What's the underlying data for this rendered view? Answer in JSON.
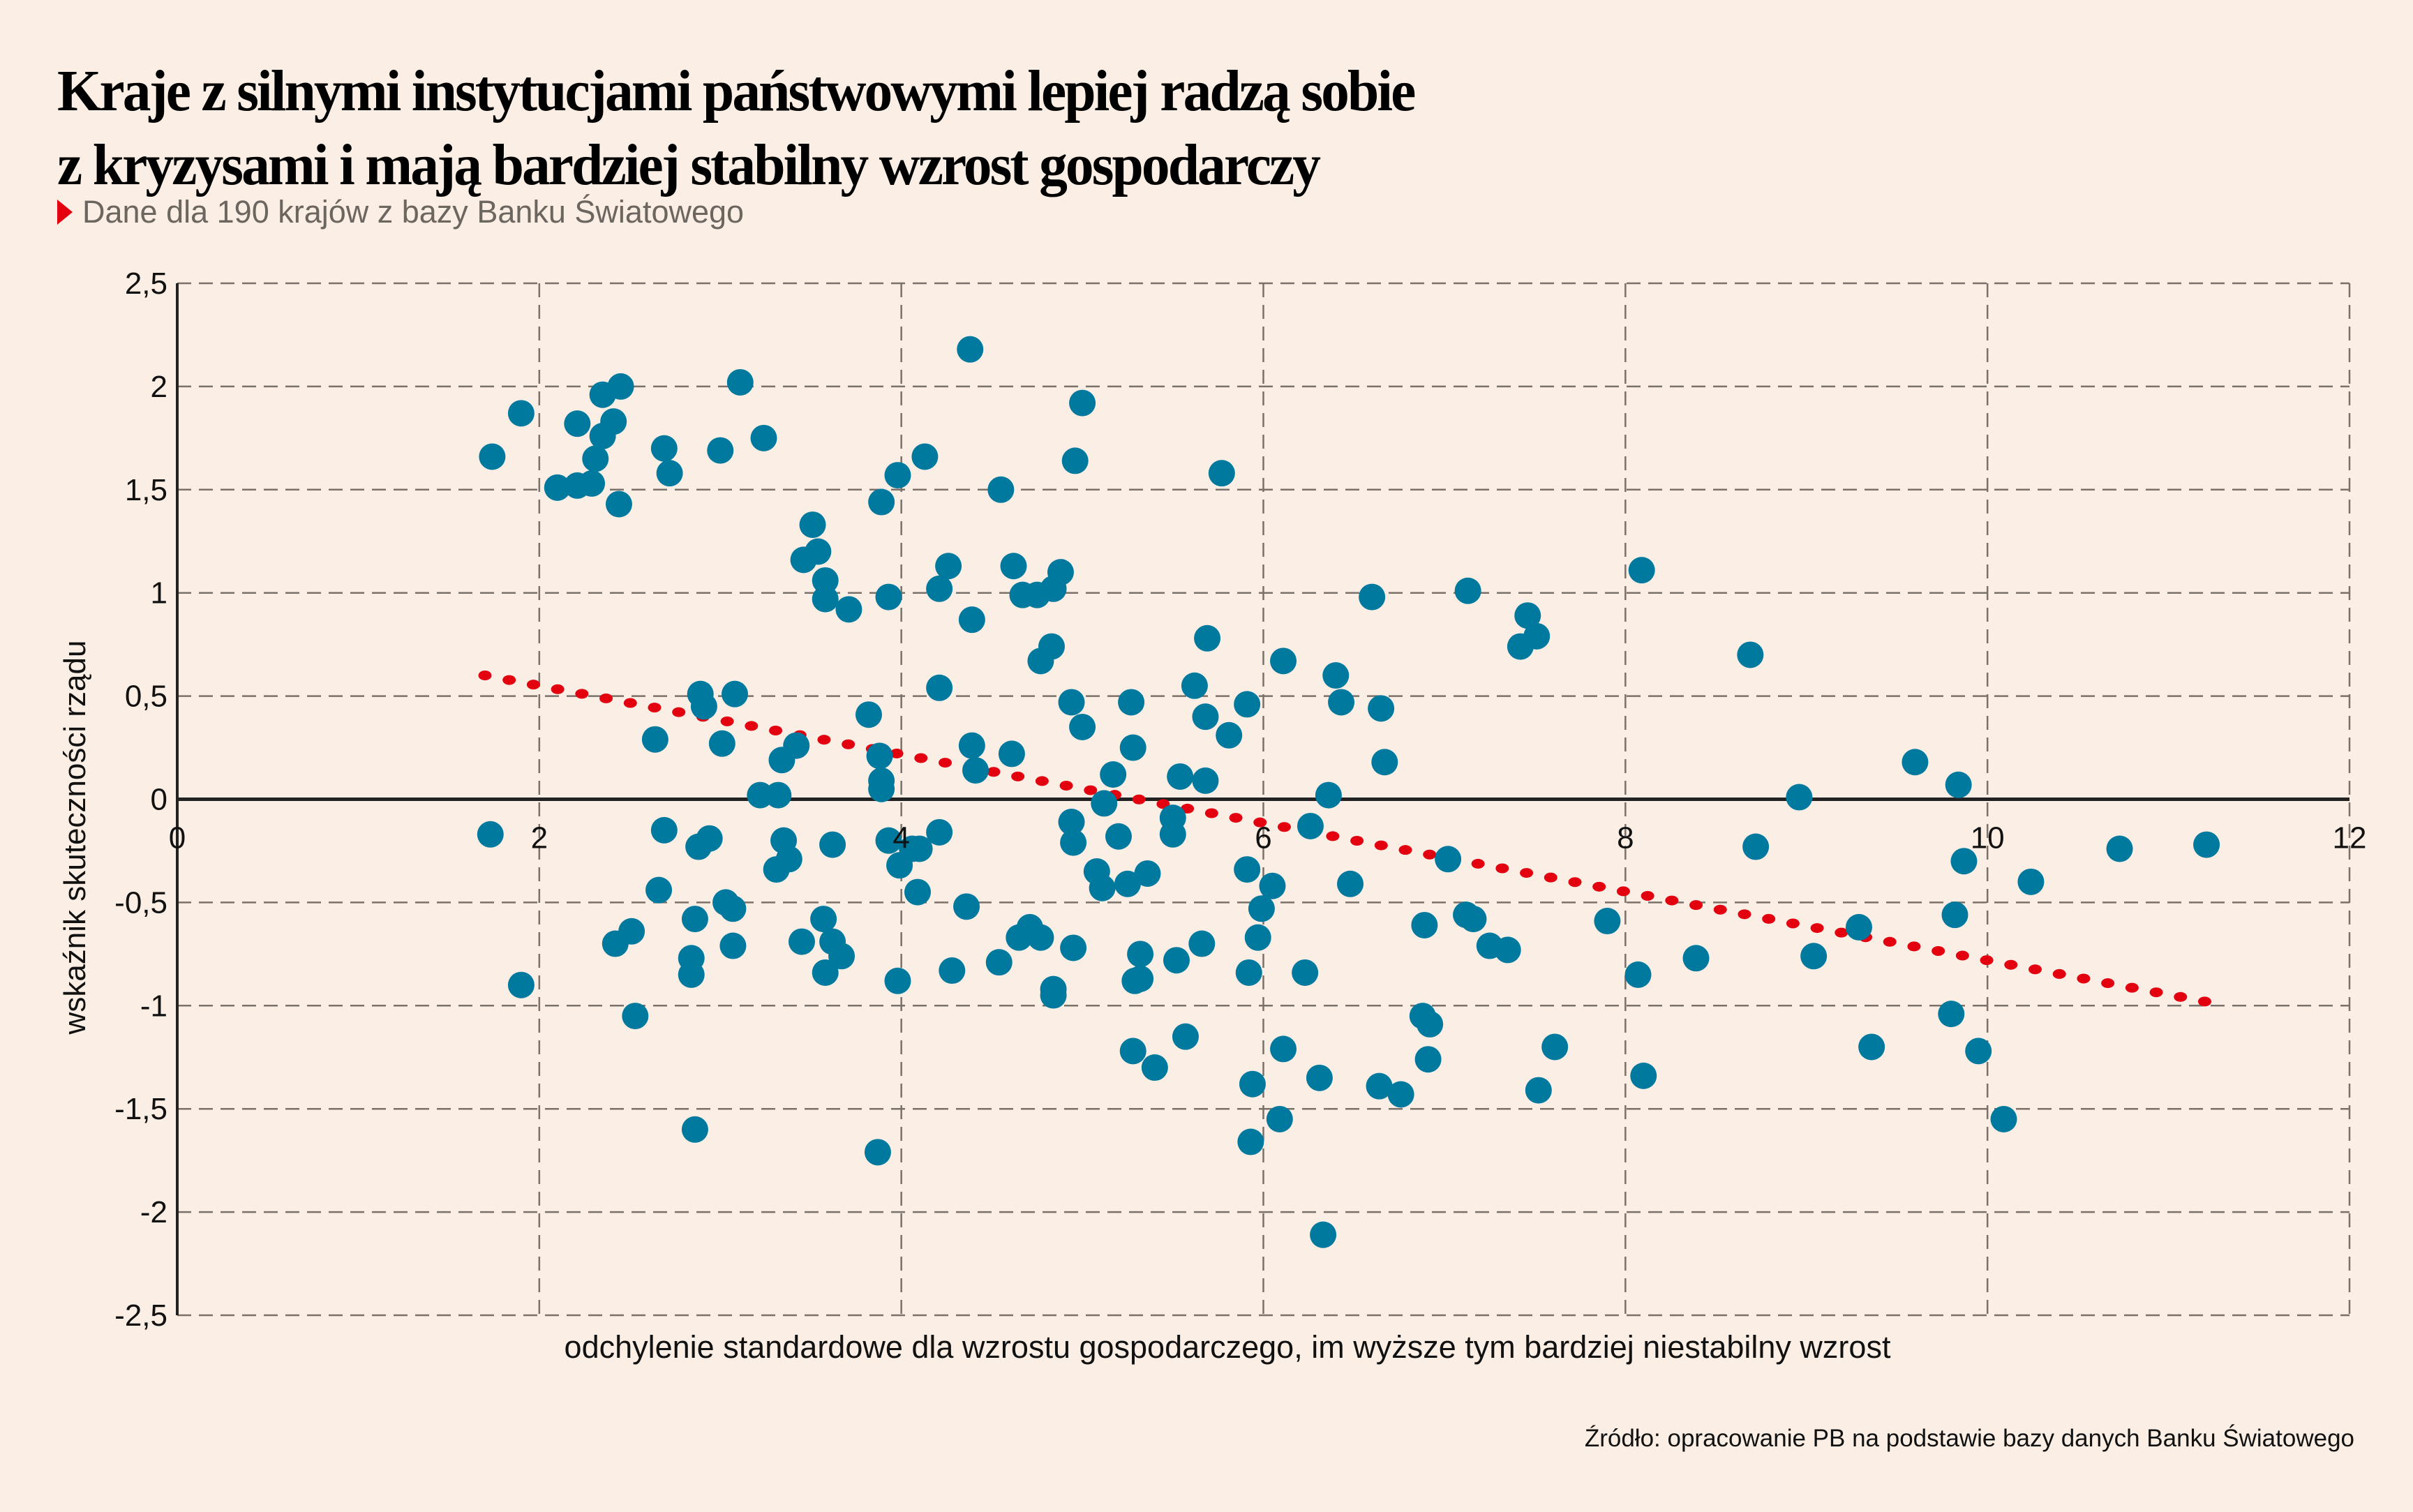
{
  "header": {
    "title_lines": [
      "Kraje z silnymi instytucjami państwowymi lepiej radzą sobie",
      "z kryzysami i mają bardziej stabilny wzrost gospodarczy"
    ],
    "subtitle": "Dane dla 190 krajów z bazy Banku Światowego",
    "bullet_icon": "red-triangle-icon"
  },
  "source": "Źródło: opracowanie PB na podstawie bazy danych Banku Światowego",
  "colors": {
    "background": "#fbeee4",
    "points": "#00799f",
    "trend": "#e3000f",
    "grid": "#7a716b",
    "axis": "#222222"
  },
  "chart_data": {
    "type": "scatter",
    "title": "Kraje z silnymi instytucjami państwowymi lepiej radzą sobie z kryzysami i mają bardziej stabilny wzrost gospodarczy",
    "subtitle": "Dane dla 190 krajów z bazy Banku Światowego",
    "xlabel": "odchylenie standardowe dla wzrostu gospodarczego, im wyższe tym bardziej niestabilny wzrost",
    "ylabel": "wskaźnik skuteczności rządu",
    "xlim": [
      0,
      12
    ],
    "ylim": [
      -2.5,
      2.5
    ],
    "x_ticks": [
      0,
      2,
      4,
      6,
      8,
      10,
      12
    ],
    "x_tick_labels": [
      "0",
      "2",
      "4",
      "6",
      "8",
      "10",
      "12"
    ],
    "y_ticks": [
      2.5,
      2,
      1.5,
      1,
      0.5,
      0,
      -0.5,
      -1,
      -1.5,
      -2,
      -2.5
    ],
    "y_tick_labels": [
      "2,5",
      "2",
      "1,5",
      "1",
      "0,5",
      "0",
      "-0,5",
      "-1",
      "-1,5",
      "-2",
      "-2,5"
    ],
    "grid": true,
    "trend_line": {
      "style": "dotted",
      "x": [
        1.7,
        11.2
      ],
      "y": [
        0.6,
        -0.98
      ]
    },
    "points": [
      [
        1.74,
        1.66
      ],
      [
        1.9,
        1.87
      ],
      [
        2.1,
        1.51
      ],
      [
        2.21,
        1.82
      ],
      [
        2.21,
        1.52
      ],
      [
        2.29,
        1.53
      ],
      [
        2.31,
        1.65
      ],
      [
        2.35,
        1.76
      ],
      [
        2.35,
        1.96
      ],
      [
        2.41,
        1.83
      ],
      [
        2.45,
        2.0
      ],
      [
        2.44,
        1.43
      ],
      [
        2.69,
        1.7
      ],
      [
        2.72,
        1.58
      ],
      [
        3.0,
        1.69
      ],
      [
        3.11,
        2.02
      ],
      [
        3.24,
        1.75
      ],
      [
        4.38,
        2.18
      ],
      [
        4.13,
        1.66
      ],
      [
        3.98,
        1.57
      ],
      [
        3.89,
        1.44
      ],
      [
        4.55,
        1.5
      ],
      [
        5.0,
        1.92
      ],
      [
        4.96,
        1.64
      ],
      [
        5.77,
        1.58
      ],
      [
        3.51,
        1.33
      ],
      [
        3.54,
        1.2
      ],
      [
        3.46,
        1.16
      ],
      [
        3.58,
        1.06
      ],
      [
        3.58,
        0.97
      ],
      [
        3.71,
        0.92
      ],
      [
        3.93,
        0.98
      ],
      [
        4.21,
        1.02
      ],
      [
        4.26,
        1.13
      ],
      [
        4.39,
        0.87
      ],
      [
        4.62,
        1.13
      ],
      [
        4.67,
        0.99
      ],
      [
        4.75,
        0.99
      ],
      [
        4.84,
        1.02
      ],
      [
        4.88,
        1.1
      ],
      [
        4.77,
        0.67
      ],
      [
        4.83,
        0.74
      ],
      [
        5.69,
        0.78
      ],
      [
        6.6,
        0.98
      ],
      [
        7.13,
        1.01
      ],
      [
        7.46,
        0.89
      ],
      [
        7.42,
        0.74
      ],
      [
        7.51,
        0.79
      ],
      [
        8.09,
        1.11
      ],
      [
        8.69,
        0.7
      ],
      [
        6.11,
        0.67
      ],
      [
        6.4,
        0.6
      ],
      [
        6.43,
        0.47
      ],
      [
        6.65,
        0.44
      ],
      [
        6.67,
        0.18
      ],
      [
        5.62,
        0.55
      ],
      [
        5.68,
        0.4
      ],
      [
        5.91,
        0.46
      ],
      [
        5.81,
        0.31
      ],
      [
        4.21,
        0.54
      ],
      [
        4.94,
        0.47
      ],
      [
        5.0,
        0.35
      ],
      [
        5.27,
        0.47
      ],
      [
        5.28,
        0.25
      ],
      [
        3.82,
        0.41
      ],
      [
        3.88,
        0.21
      ],
      [
        3.89,
        0.09
      ],
      [
        3.89,
        0.05
      ],
      [
        4.39,
        0.26
      ],
      [
        4.41,
        0.14
      ],
      [
        4.61,
        0.22
      ],
      [
        5.17,
        0.12
      ],
      [
        5.12,
        -0.02
      ],
      [
        5.54,
        0.11
      ],
      [
        5.68,
        0.09
      ],
      [
        6.36,
        0.02
      ],
      [
        2.89,
        0.51
      ],
      [
        2.91,
        0.45
      ],
      [
        3.08,
        0.51
      ],
      [
        3.01,
        0.27
      ],
      [
        2.64,
        0.29
      ],
      [
        3.42,
        0.26
      ],
      [
        3.34,
        0.19
      ],
      [
        3.22,
        0.02
      ],
      [
        3.32,
        0.02
      ],
      [
        8.96,
        0.01
      ],
      [
        9.6,
        0.18
      ],
      [
        9.84,
        0.07
      ],
      [
        1.73,
        -0.17
      ],
      [
        1.9,
        -0.9
      ],
      [
        2.69,
        -0.15
      ],
      [
        2.66,
        -0.44
      ],
      [
        2.51,
        -0.64
      ],
      [
        2.42,
        -0.7
      ],
      [
        2.53,
        -1.05
      ],
      [
        2.86,
        -0.58
      ],
      [
        2.84,
        -0.77
      ],
      [
        2.84,
        -0.85
      ],
      [
        2.86,
        -1.6
      ],
      [
        2.88,
        -0.23
      ],
      [
        2.94,
        -0.19
      ],
      [
        3.03,
        -0.5
      ],
      [
        3.07,
        -0.53
      ],
      [
        3.07,
        -0.71
      ],
      [
        3.35,
        -0.2
      ],
      [
        3.38,
        -0.29
      ],
      [
        3.31,
        -0.34
      ],
      [
        3.45,
        -0.69
      ],
      [
        3.62,
        -0.22
      ],
      [
        3.57,
        -0.58
      ],
      [
        3.62,
        -0.69
      ],
      [
        3.67,
        -0.76
      ],
      [
        3.58,
        -0.84
      ],
      [
        3.87,
        -1.71
      ],
      [
        3.93,
        -0.2
      ],
      [
        3.99,
        -0.32
      ],
      [
        4.06,
        -0.24
      ],
      [
        4.1,
        -0.24
      ],
      [
        4.21,
        -0.16
      ],
      [
        4.09,
        -0.45
      ],
      [
        3.98,
        -0.88
      ],
      [
        4.28,
        -0.83
      ],
      [
        4.36,
        -0.52
      ],
      [
        4.54,
        -0.79
      ],
      [
        4.65,
        -0.67
      ],
      [
        4.71,
        -0.62
      ],
      [
        4.77,
        -0.67
      ],
      [
        4.84,
        -0.92
      ],
      [
        4.84,
        -0.95
      ],
      [
        4.95,
        -0.72
      ],
      [
        4.94,
        -0.11
      ],
      [
        4.95,
        -0.21
      ],
      [
        5.08,
        -0.35
      ],
      [
        5.11,
        -0.43
      ],
      [
        5.2,
        -0.18
      ],
      [
        5.25,
        -0.41
      ],
      [
        5.36,
        -0.36
      ],
      [
        5.32,
        -0.75
      ],
      [
        5.29,
        -0.88
      ],
      [
        5.32,
        -0.87
      ],
      [
        5.28,
        -1.22
      ],
      [
        5.4,
        -1.3
      ],
      [
        5.57,
        -1.15
      ],
      [
        5.5,
        -0.09
      ],
      [
        5.5,
        -0.17
      ],
      [
        5.52,
        -0.78
      ],
      [
        5.66,
        -0.7
      ],
      [
        5.91,
        -0.34
      ],
      [
        6.05,
        -0.42
      ],
      [
        5.99,
        -0.53
      ],
      [
        5.97,
        -0.67
      ],
      [
        5.92,
        -0.84
      ],
      [
        5.94,
        -1.38
      ],
      [
        5.93,
        -1.66
      ],
      [
        6.26,
        -0.13
      ],
      [
        6.23,
        -0.84
      ],
      [
        6.11,
        -1.21
      ],
      [
        6.09,
        -1.55
      ],
      [
        6.31,
        -1.35
      ],
      [
        6.33,
        -2.11
      ],
      [
        6.48,
        -0.41
      ],
      [
        6.64,
        -1.39
      ],
      [
        6.76,
        -1.43
      ],
      [
        6.89,
        -0.61
      ],
      [
        6.88,
        -1.05
      ],
      [
        6.92,
        -1.09
      ],
      [
        6.91,
        -1.26
      ],
      [
        7.02,
        -0.29
      ],
      [
        7.12,
        -0.56
      ],
      [
        7.16,
        -0.58
      ],
      [
        7.25,
        -0.71
      ],
      [
        7.35,
        -0.73
      ],
      [
        7.61,
        -1.2
      ],
      [
        7.52,
        -1.41
      ],
      [
        7.9,
        -0.59
      ],
      [
        8.07,
        -0.85
      ],
      [
        8.1,
        -1.34
      ],
      [
        8.39,
        -0.77
      ],
      [
        8.72,
        -0.23
      ],
      [
        9.04,
        -0.76
      ],
      [
        9.29,
        -0.62
      ],
      [
        9.36,
        -1.2
      ],
      [
        9.87,
        -0.3
      ],
      [
        9.82,
        -0.56
      ],
      [
        9.8,
        -1.04
      ],
      [
        9.95,
        -1.22
      ],
      [
        10.09,
        -1.55
      ],
      [
        10.24,
        -0.4
      ],
      [
        10.73,
        -0.24
      ],
      [
        11.21,
        -0.22
      ]
    ]
  }
}
